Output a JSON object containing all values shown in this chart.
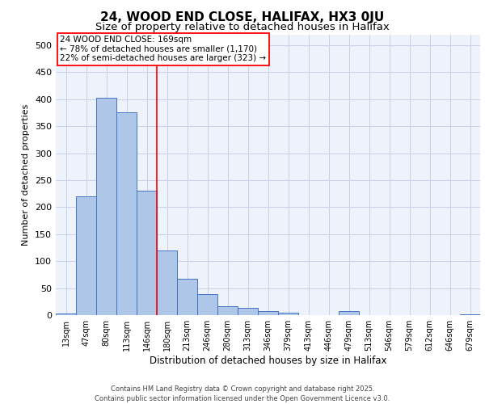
{
  "title_line1": "24, WOOD END CLOSE, HALIFAX, HX3 0JU",
  "title_line2": "Size of property relative to detached houses in Halifax",
  "xlabel": "Distribution of detached houses by size in Halifax",
  "ylabel": "Number of detached properties",
  "bar_labels": [
    "13sqm",
    "47sqm",
    "80sqm",
    "113sqm",
    "146sqm",
    "180sqm",
    "213sqm",
    "246sqm",
    "280sqm",
    "313sqm",
    "346sqm",
    "379sqm",
    "413sqm",
    "446sqm",
    "479sqm",
    "513sqm",
    "546sqm",
    "579sqm",
    "612sqm",
    "646sqm",
    "679sqm"
  ],
  "bar_values": [
    3,
    220,
    403,
    376,
    230,
    120,
    68,
    39,
    17,
    13,
    7,
    5,
    0,
    0,
    7,
    0,
    0,
    0,
    0,
    0,
    2
  ],
  "bar_color": "#aec6e8",
  "bar_edge_color": "#4472c4",
  "vline_x": 4.5,
  "vline_color": "red",
  "annotation_text": "24 WOOD END CLOSE: 169sqm\n← 78% of detached houses are smaller (1,170)\n22% of semi-detached houses are larger (323) →",
  "annotation_box_color": "white",
  "annotation_box_edge": "red",
  "ylim": [
    0,
    520
  ],
  "yticks": [
    0,
    50,
    100,
    150,
    200,
    250,
    300,
    350,
    400,
    450,
    500
  ],
  "footer_line1": "Contains HM Land Registry data © Crown copyright and database right 2025.",
  "footer_line2": "Contains public sector information licensed under the Open Government Licence v3.0.",
  "background_color": "#eef2fb",
  "grid_color": "#c8d0e8",
  "title1_fontsize": 11,
  "title2_fontsize": 9.5,
  "ylabel_fontsize": 8,
  "xlabel_fontsize": 8.5,
  "tick_fontsize": 7,
  "annotation_fontsize": 7.5,
  "footer_fontsize": 6
}
